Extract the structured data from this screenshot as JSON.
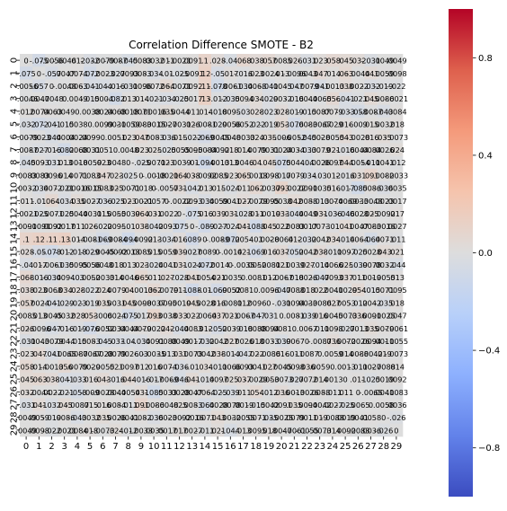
{
  "chart_data": {
    "type": "heatmap",
    "title": "Correlation Difference SMOTE - B2",
    "xlabel": "",
    "ylabel": "",
    "x_labels": [
      "0",
      "1",
      "2",
      "3",
      "4",
      "5",
      "6",
      "7",
      "8",
      "9",
      "10",
      "11",
      "12",
      "13",
      "14",
      "15",
      "16",
      "17",
      "18",
      "19",
      "20",
      "21",
      "22",
      "23",
      "24",
      "25",
      "26",
      "27",
      "28",
      "29"
    ],
    "y_labels": [
      "0",
      "1",
      "2",
      "3",
      "4",
      "5",
      "6",
      "7",
      "8",
      "9",
      "10",
      "11",
      "12",
      "13",
      "14",
      "15",
      "16",
      "17",
      "18",
      "19",
      "20",
      "21",
      "22",
      "23",
      "24",
      "25",
      "26",
      "27",
      "28",
      "29"
    ],
    "colormap": "coolwarm",
    "vmin": -1,
    "vmax": 1,
    "colorbar_ticks": [
      0.8,
      0.4,
      0.0,
      -0.4,
      -0.8
    ],
    "colorbar_tick_labels": [
      "0.8",
      "0.4",
      "0.0",
      "−0.4",
      "−0.8"
    ],
    "annotation_format": "2 significant digits",
    "values": [
      [
        0,
        -0.075,
        -0.0056,
        -0.0046,
        0.012,
        -0.032,
        -0.0079,
        -0.0087,
        -0.045,
        0.0083,
        0.0032,
        0.011,
        -0.0021,
        0.0091,
        0.1,
        0.028,
        -0.04,
        0.068,
        0.038,
        0.057,
        0.0085,
        0.026,
        -0.031,
        0.023,
        0.058,
        0.045,
        0.032,
        -0.031,
        0.0049,
        0.0049
      ],
      [
        -0.075,
        0,
        -0.057,
        0.0047,
        0.0074,
        -0.072,
        -0.0023,
        -0.027,
        0.0093,
        0.0083,
        -0.034,
        -0.01,
        -0.025,
        -0.0091,
        0.12,
        -0.05,
        0.017,
        -0.016,
        0.023,
        0.0024,
        0.013,
        -0.0096,
        0.0043,
        0.047,
        0.014,
        0.063,
        -0.0044,
        0.041,
        0.0059,
        0.0098
      ],
      [
        -0.0056,
        -0.057,
        0,
        -0.0048,
        0.0063,
        -0.041,
        -0.044,
        -0.016,
        -0.031,
        0.0096,
        0.0072,
        0.064,
        -0.0071,
        0.0092,
        0.11,
        -0.078,
        -0.0061,
        -0.034,
        0.0068,
        -0.041,
        0.0045,
        -0.047,
        -0.0079,
        -0.041,
        -0.0013,
        0.038,
        0.0022,
        -0.032,
        -0.019,
        -0.022
      ],
      [
        -0.0046,
        0.0047,
        -0.0048,
        0,
        0.0049,
        -0.015,
        0.0004,
        -0.082,
        0.013,
        0.014,
        -0.021,
        -0.034,
        -0.025,
        0.0017,
        0.13,
        -0.012,
        -0.035,
        0.0094,
        0.034,
        -0.029,
        0.0032,
        -0.016,
        0.0044,
        -0.0065,
        0.056,
        -0.041,
        -0.021,
        0.045,
        0.0086,
        -0.0021
      ],
      [
        0.012,
        0.0074,
        0.0063,
        0.0049,
        0,
        0.0038,
        0.0024,
        0.0068,
        0.0018,
        0.0071,
        0.00016,
        0.035,
        0.0044,
        0.011,
        0.014,
        -0.018,
        0.0095,
        -0.03,
        0.028,
        -0.023,
        0.028,
        -0.019,
        -0.015,
        0.0087,
        0.0079,
        -0.033,
        -0.058,
        -0.0087,
        -0.043,
        0.0084
      ],
      [
        -0.032,
        -0.072,
        -0.041,
        -0.015,
        0.0038,
        0,
        0.0099,
        0.0031,
        -0.0059,
        0.0083,
        -0.0015,
        0.0027,
        -0.0031,
        0.026,
        -0.0081,
        -0.029,
        0.0056,
        0.0052,
        -0.022,
        -0.019,
        0.053,
        -0.076,
        0.0083,
        -0.0067,
        0.0029,
        0.016,
        -0.009,
        0.015,
        0.0032,
        0.018
      ],
      [
        -0.0079,
        -0.0023,
        -0.044,
        0.0004,
        0.0024,
        0.0099,
        0,
        0.0051,
        0.023,
        0.047,
        0.0083,
        -0.036,
        0.015,
        -0.022,
        -0.069,
        -0.0045,
        0.0048,
        -0.0033,
        0.024,
        0.035,
        -0.006,
        -0.0052,
        -0.045,
        0.0028,
        -0.0055,
        0.043,
        -0.0028,
        0.016,
        0.035,
        -0.0073
      ],
      [
        -0.0087,
        -0.027,
        -0.016,
        -0.082,
        0.0068,
        0.0031,
        0.0051,
        0,
        0.0048,
        0.023,
        0.025,
        -0.025,
        0.0055,
        0.0095,
        -0.0084,
        -0.0092,
        0.018,
        0.014,
        0.0079,
        0.0031,
        0.0024,
        0.0034,
        -0.033,
        0.0079,
        0.021,
        -0.016,
        0.0044,
        0.0084,
        0.0026,
        0.024
      ],
      [
        -0.045,
        0.0093,
        -0.031,
        0.013,
        0.0018,
        -0.0059,
        0.023,
        0.0048,
        0,
        -0.025,
        -0.0071,
        0.023,
        -0.0039,
        -0.01,
        -0.094,
        -0.0013,
        0.013,
        0.0046,
        0.04,
        0.045,
        -0.075,
        0.0044,
        -0.04,
        0.0026,
        0.0097,
        0.044,
        -0.0054,
        -0.011,
        0.0041,
        -0.012
      ],
      [
        0.0083,
        0.0083,
        0.0096,
        0.014,
        0.0071,
        0.0083,
        0.047,
        0.023,
        -0.025,
        0,
        -0.0018,
        -0.0021,
        0.064,
        0.038,
        -0.0092,
        0.0085,
        0.023,
        0.065,
        -0.0013,
        0.0098,
        -0.017,
        0.0079,
        -0.034,
        -0.03,
        0.012,
        -0.016,
        0.031,
        0.091,
        0.0082,
        -0.0033
      ],
      [
        0.0032,
        -0.034,
        0.0072,
        -0.021,
        0.00016,
        -0.0015,
        0.0083,
        0.025,
        -0.0071,
        -0.0018,
        0,
        -0.0057,
        0.031,
        -0.042,
        0.013,
        0.015,
        -0.024,
        0.011,
        0.062,
        -0.0037,
        0.093,
        -0.0022,
        0.0091,
        -0.0035,
        0.016,
        -0.017,
        -0.085,
        0.0086,
        -0.036,
        0.0035
      ],
      [
        0.011,
        -0.01,
        0.064,
        -0.034,
        0.035,
        0.0027,
        -0.036,
        -0.025,
        0.023,
        -0.0021,
        -0.0057,
        0,
        -0.0022,
        0.0093,
        -0.034,
        0.0059,
        0.0041,
        0.027,
        -0.0079,
        0.0095,
        0.0038,
        0.042,
        0.0088,
        -0.013,
        0.0074,
        -0.0069,
        0.0033,
        -0.0048,
        0.0023,
        0.0017
      ],
      [
        -0.0021,
        -0.025,
        -0.0071,
        -0.025,
        0.0044,
        -0.0031,
        0.015,
        0.0055,
        -0.0039,
        0.064,
        0.031,
        -0.0022,
        0,
        -0.075,
        0.016,
        0.039,
        0.031,
        -0.028,
        0.011,
        -0.0019,
        0.033,
        -0.044,
        0.0049,
        0.031,
        -0.036,
        -0.046,
        0.0028,
        0.025,
        -0.0092,
        0.017
      ],
      [
        0.0091,
        -0.0091,
        0.0092,
        0.0017,
        0.011,
        0.026,
        -0.022,
        0.0095,
        -0.01,
        0.038,
        -0.042,
        0.0093,
        -0.075,
        0,
        -0.089,
        -0.027,
        -0.024,
        0.041,
        -0.088,
        0.045,
        0.022,
        0.0083,
        0.0017,
        0.0073,
        -0.01,
        0.041,
        0.0047,
        0.0083,
        -0.0016,
        0.0027
      ],
      [
        0.1,
        0.12,
        0.11,
        0.13,
        0.014,
        -0.0081,
        -0.069,
        -0.0084,
        -0.094,
        -0.0092,
        0.013,
        -0.034,
        0.016,
        -0.089,
        0,
        -0.0089,
        -0.072,
        0.0054,
        -0.01,
        0.0028,
        -0.0064,
        0.012,
        -0.032,
        0.0042,
        0.034,
        -0.014,
        0.0064,
        -0.064,
        0.0071,
        -0.011
      ],
      [
        0.028,
        -0.05,
        -0.078,
        -0.012,
        -0.018,
        -0.029,
        -0.0045,
        -0.0092,
        -0.0013,
        0.0085,
        0.015,
        0.0059,
        0.039,
        -0.027,
        -0.0089,
        0,
        -0.0014,
        0.021,
        -0.069,
        0.016,
        0.037,
        -0.052,
        0.0042,
        0.038,
        -0.011,
        0.0097,
        -0.025,
        0.0028,
        0.043,
        0.021
      ],
      [
        -0.04,
        0.017,
        -0.0061,
        -0.035,
        0.0095,
        0.0056,
        0.0048,
        0.018,
        0.013,
        0.023,
        -0.024,
        0.0041,
        0.031,
        -0.024,
        -0.072,
        -0.0014,
        0,
        -0.0035,
        0.0052,
        -0.0081,
        0.021,
        0.0039,
        0.027,
        -0.014,
        0.0066,
        0.025,
        -0.039,
        0.0078,
        0.0032,
        -0.044
      ],
      [
        0.068,
        -0.016,
        -0.034,
        0.0094,
        -0.03,
        0.0052,
        -0.0033,
        0.014,
        0.0046,
        0.065,
        0.011,
        0.027,
        -0.028,
        0.041,
        0.0054,
        0.021,
        -0.0035,
        0,
        0.0081,
        0.012,
        -0.0067,
        -0.018,
        0.0026,
        -0.047,
        0.0093,
        0.037,
        0.011,
        0.0019,
        -0.0055,
        0.013
      ],
      [
        0.038,
        0.023,
        0.0068,
        0.034,
        0.028,
        -0.022,
        0.024,
        0.0079,
        0.04,
        -0.0013,
        0.062,
        -0.0079,
        0.011,
        -0.088,
        -0.01,
        -0.069,
        0.0052,
        0.0081,
        0,
        0.0096,
        -0.047,
        0.0088,
        0.018,
        0.022,
        0.0041,
        -0.0029,
        0.054,
        -0.015,
        0.0071,
        0.0095
      ],
      [
        0.057,
        0.0024,
        -0.041,
        -0.029,
        -0.023,
        -0.019,
        0.035,
        0.0031,
        0.045,
        0.0098,
        -0.0037,
        0.0095,
        -0.0019,
        0.045,
        0.0028,
        0.016,
        -0.0081,
        0.012,
        0.0096,
        0,
        -0.031,
        0.0094,
        0.0033,
        -0.0086,
        0.027,
        0.0053,
        -0.012,
        0.0042,
        -0.035,
        0.018
      ],
      [
        0.0085,
        0.013,
        0.0045,
        0.0032,
        0.028,
        0.053,
        -0.006,
        0.0024,
        -0.075,
        -0.017,
        0.093,
        0.0038,
        0.033,
        0.022,
        -0.0064,
        0.037,
        0.021,
        -0.0067,
        -0.047,
        -0.031,
        0,
        0.0081,
        -0.039,
        0.016,
        0.0045,
        -0.0073,
        0.036,
        0.0091,
        -0.0025,
        0.0047
      ],
      [
        0.026,
        -0.0096,
        -0.047,
        -0.016,
        -0.019,
        -0.076,
        -0.0052,
        0.0034,
        0.0044,
        0.0079,
        -0.0022,
        0.042,
        -0.044,
        0.0083,
        0.012,
        -0.052,
        0.0039,
        -0.018,
        0.0088,
        0.0094,
        0.0081,
        0,
        0.0067,
        -0.011,
        0.0098,
        -0.027,
        0.0013,
        0.035,
        0.0079,
        -0.0061
      ],
      [
        -0.031,
        0.0043,
        -0.0079,
        0.0044,
        -0.015,
        0.0083,
        -0.045,
        -0.033,
        -0.04,
        -0.034,
        0.0091,
        0.0088,
        0.0049,
        0.0017,
        -0.032,
        0.0042,
        0.027,
        0.0026,
        0.018,
        0.0033,
        -0.039,
        0.0067,
        0,
        -0.0087,
        0.036,
        0.0072,
        -0.0026,
        0.0094,
        0.0011,
        -0.0055
      ],
      [
        0.023,
        0.047,
        -0.041,
        -0.0065,
        0.0087,
        -0.0067,
        0.0028,
        0.0079,
        0.0026,
        -0.03,
        -0.0035,
        -0.013,
        0.031,
        0.0073,
        0.0042,
        0.038,
        -0.014,
        -0.047,
        0.022,
        -0.0086,
        0.016,
        -0.011,
        -0.0087,
        0,
        0.0059,
        0.014,
        0.0088,
        -0.0042,
        0.019,
        -0.0073
      ],
      [
        0.058,
        0.014,
        -0.0013,
        0.056,
        0.0079,
        0.0029,
        -0.0055,
        0.021,
        0.0097,
        0.012,
        0.016,
        0.0074,
        -0.036,
        -0.01,
        0.034,
        -0.011,
        0.0066,
        0.0093,
        0.0041,
        0.027,
        0.0045,
        0.0098,
        0.036,
        0.0059,
        0,
        0.0013,
        -0.011,
        0.0027,
        -0.0088,
        0.014
      ],
      [
        0.045,
        0.063,
        0.038,
        -0.041,
        -0.033,
        0.016,
        0.043,
        -0.016,
        0.044,
        -0.016,
        -0.017,
        -0.0069,
        -0.046,
        0.041,
        -0.014,
        0.0097,
        0.025,
        0.037,
        -0.0029,
        0.0053,
        -0.0073,
        -0.027,
        0.0072,
        0.014,
        0.0013,
        0,
        0.011,
        -0.025,
        0.0019,
        0.0092
      ],
      [
        0.032,
        -0.0044,
        0.0022,
        -0.021,
        -0.058,
        -0.009,
        -0.0028,
        0.0044,
        -0.0054,
        0.031,
        -0.085,
        0.0033,
        0.0028,
        0.0047,
        0.0064,
        -0.025,
        -0.039,
        0.011,
        0.054,
        -0.012,
        0.036,
        0.0013,
        -0.0026,
        0.0088,
        -0.011,
        0.011,
        0,
        -0.0065,
        0.0041,
        -0.0083
      ],
      [
        -0.031,
        0.041,
        -0.032,
        0.045,
        -0.0087,
        0.015,
        0.016,
        0.0084,
        -0.011,
        0.091,
        0.0086,
        -0.0048,
        0.025,
        0.0083,
        -0.064,
        0.0028,
        0.0078,
        0.0019,
        -0.015,
        0.0042,
        0.0091,
        0.035,
        0.0094,
        -0.0042,
        0.0027,
        -0.025,
        -0.0065,
        0,
        0.0058,
        0.0036
      ],
      [
        0.0049,
        0.0059,
        -0.019,
        0.0086,
        -0.043,
        0.0032,
        0.035,
        0.0026,
        0.0041,
        0.0082,
        -0.036,
        0.0023,
        -0.0092,
        -0.0016,
        0.0071,
        0.043,
        0.0032,
        -0.0055,
        0.0071,
        -0.035,
        -0.0025,
        0.0079,
        0.0011,
        0.019,
        -0.0088,
        0.0019,
        0.0041,
        0.0058,
        0,
        -0.026
      ],
      [
        0.0049,
        0.0098,
        -0.022,
        -0.0021,
        0.0084,
        0.018,
        -0.0073,
        0.024,
        -0.012,
        -0.0033,
        0.0035,
        0.0017,
        0.017,
        0.0027,
        -0.011,
        0.021,
        -0.044,
        0.013,
        0.0095,
        0.018,
        0.0047,
        -0.0061,
        -0.0055,
        -0.0073,
        0.014,
        0.0092,
        -0.0083,
        0.0036,
        -0.026,
        0
      ]
    ]
  }
}
